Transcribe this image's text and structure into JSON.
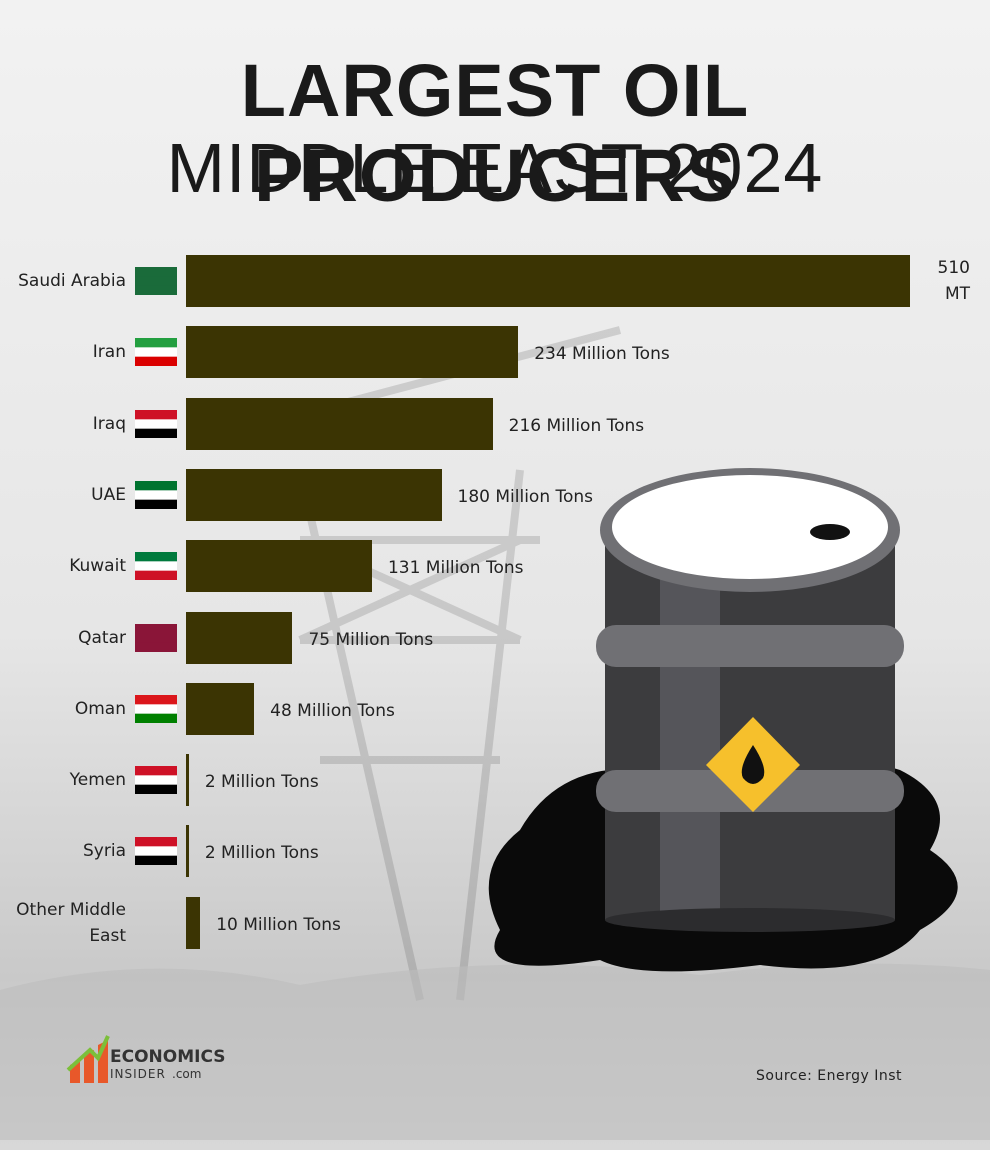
{
  "chart_data": {
    "type": "bar",
    "orientation": "horizontal",
    "title": "LARGEST OIL PRODUCERS",
    "subtitle": "MIDDLE EAST 2024",
    "categories": [
      "Saudi Arabia",
      "Iran",
      "Iraq",
      "UAE",
      "Kuwait",
      "Qatar",
      "Oman",
      "Yemen",
      "Syria",
      "Other Middle East"
    ],
    "values": [
      510,
      234,
      216,
      180,
      131,
      75,
      48,
      2,
      2,
      10
    ],
    "value_labels": [
      "510 MT",
      "234 Million Tons",
      "216 Million Tons",
      "180 Million Tons",
      "131 Million Tons",
      "75 Million Tons",
      "48 Million Tons",
      "2 Million Tons",
      "2 Million Tons",
      "10 Million Tons"
    ],
    "color": "#3b3403",
    "source": "Source: Energy Inst"
  },
  "logo": {
    "name": "ECONOMICS",
    "line2": "INSIDER",
    "domain": ".com"
  }
}
